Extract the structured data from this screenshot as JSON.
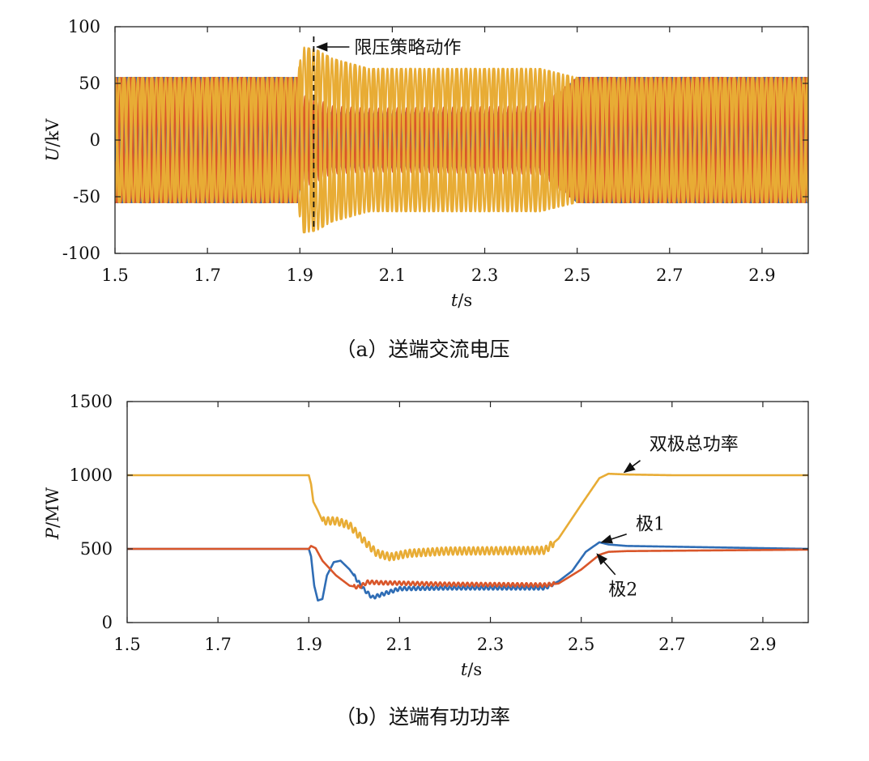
{
  "chart_data": [
    {
      "type": "line",
      "xlabel_italic": "t",
      "xlabel_unit": "/s",
      "ylabel_italic": "U",
      "ylabel_unit": "/kV",
      "xlim": [
        1.5,
        3.0
      ],
      "ylim": [
        -100,
        100
      ],
      "xticks": [
        1.5,
        1.7,
        1.9,
        2.1,
        2.3,
        2.5,
        2.7,
        2.9
      ],
      "yticks": [
        -100,
        -50,
        0,
        50,
        100
      ],
      "xtick_labels": [
        "1.5",
        "1.7",
        "1.9",
        "2.1",
        "2.3",
        "2.5",
        "2.7",
        "2.9"
      ],
      "ytick_labels": [
        "-100",
        "-50",
        "0",
        "50",
        "100"
      ],
      "caption": "（a）送端交流电压",
      "annotation": {
        "text": "限压策略动作",
        "x": 1.93
      },
      "series": [
        {
          "color": "#2f6db5",
          "waveform": "three-phase sinusoid, 50 Hz",
          "amplitude_envelope": [
            [
              1.5,
              55
            ],
            [
              1.895,
              55
            ],
            [
              1.905,
              24
            ],
            [
              2.42,
              24
            ],
            [
              2.5,
              55
            ],
            [
              3.0,
              55
            ]
          ]
        },
        {
          "color": "#d9562a",
          "waveform": "three-phase sinusoid, 50 Hz",
          "amplitude_envelope": [
            [
              1.5,
              55
            ],
            [
              1.895,
              55
            ],
            [
              1.905,
              38
            ],
            [
              1.92,
              40
            ],
            [
              1.97,
              30
            ],
            [
              2.05,
              28
            ],
            [
              2.42,
              30
            ],
            [
              2.5,
              55
            ],
            [
              3.0,
              55
            ]
          ]
        },
        {
          "color": "#e8ac35",
          "waveform": "three-phase sinusoid, 50 Hz",
          "amplitude_envelope": [
            [
              1.5,
              55
            ],
            [
              1.895,
              55
            ],
            [
              1.905,
              82
            ],
            [
              1.935,
              80
            ],
            [
              1.97,
              72
            ],
            [
              2.05,
              63
            ],
            [
              2.42,
              63
            ],
            [
              2.5,
              55
            ],
            [
              3.0,
              55
            ]
          ]
        }
      ]
    },
    {
      "type": "line",
      "xlabel_italic": "t",
      "xlabel_unit": "/s",
      "ylabel_italic": "P",
      "ylabel_unit": "/MW",
      "xlim": [
        1.5,
        3.0
      ],
      "ylim": [
        0,
        1500
      ],
      "xticks": [
        1.5,
        1.7,
        1.9,
        2.1,
        2.3,
        2.5,
        2.7,
        2.9
      ],
      "yticks": [
        0,
        500,
        1000,
        1500
      ],
      "xtick_labels": [
        "1.5",
        "1.7",
        "1.9",
        "2.1",
        "2.3",
        "2.5",
        "2.7",
        "2.9"
      ],
      "ytick_labels": [
        "0",
        "500",
        "1000",
        "1500"
      ],
      "caption": "（b）送端有功功率",
      "series": [
        {
          "name": "双极总功率",
          "color": "#e8ac35",
          "points": [
            [
              1.5,
              1000
            ],
            [
              1.9,
              1000
            ],
            [
              1.905,
              940
            ],
            [
              1.91,
              820
            ],
            [
              1.92,
              760
            ],
            [
              1.93,
              690
            ],
            [
              1.96,
              690
            ],
            [
              1.99,
              660
            ],
            [
              2.02,
              560
            ],
            [
              2.05,
              470
            ],
            [
              2.08,
              445
            ],
            [
              2.12,
              470
            ],
            [
              2.2,
              485
            ],
            [
              2.42,
              490
            ],
            [
              2.45,
              570
            ],
            [
              2.5,
              800
            ],
            [
              2.54,
              980
            ],
            [
              2.56,
              1010
            ],
            [
              2.6,
              1005
            ],
            [
              2.7,
              1000
            ],
            [
              3.0,
              1000
            ]
          ],
          "ripple": [
            [
              1.93,
              2.44,
              25
            ]
          ]
        },
        {
          "name": "极1",
          "color": "#2f6db5",
          "points": [
            [
              1.5,
              500
            ],
            [
              1.9,
              500
            ],
            [
              1.905,
              450
            ],
            [
              1.912,
              250
            ],
            [
              1.92,
              150
            ],
            [
              1.93,
              160
            ],
            [
              1.94,
              320
            ],
            [
              1.955,
              410
            ],
            [
              1.97,
              420
            ],
            [
              1.99,
              360
            ],
            [
              2.02,
              230
            ],
            [
              2.04,
              170
            ],
            [
              2.06,
              190
            ],
            [
              2.1,
              230
            ],
            [
              2.2,
              235
            ],
            [
              2.42,
              235
            ],
            [
              2.45,
              280
            ],
            [
              2.48,
              350
            ],
            [
              2.51,
              480
            ],
            [
              2.54,
              545
            ],
            [
              2.56,
              530
            ],
            [
              2.6,
              520
            ],
            [
              3.0,
              500
            ]
          ],
          "ripple": [
            [
              2.0,
              2.44,
              12
            ]
          ]
        },
        {
          "name": "极2",
          "color": "#d9562a",
          "points": [
            [
              1.5,
              500
            ],
            [
              1.9,
              500
            ],
            [
              1.905,
              520
            ],
            [
              1.915,
              505
            ],
            [
              1.93,
              420
            ],
            [
              1.96,
              320
            ],
            [
              1.99,
              250
            ],
            [
              2.01,
              240
            ],
            [
              2.03,
              275
            ],
            [
              2.06,
              270
            ],
            [
              2.2,
              260
            ],
            [
              2.42,
              255
            ],
            [
              2.45,
              265
            ],
            [
              2.5,
              360
            ],
            [
              2.54,
              460
            ],
            [
              2.56,
              480
            ],
            [
              2.6,
              485
            ],
            [
              3.0,
              495
            ]
          ],
          "ripple": [
            [
              2.0,
              2.44,
              12
            ]
          ]
        }
      ]
    }
  ]
}
